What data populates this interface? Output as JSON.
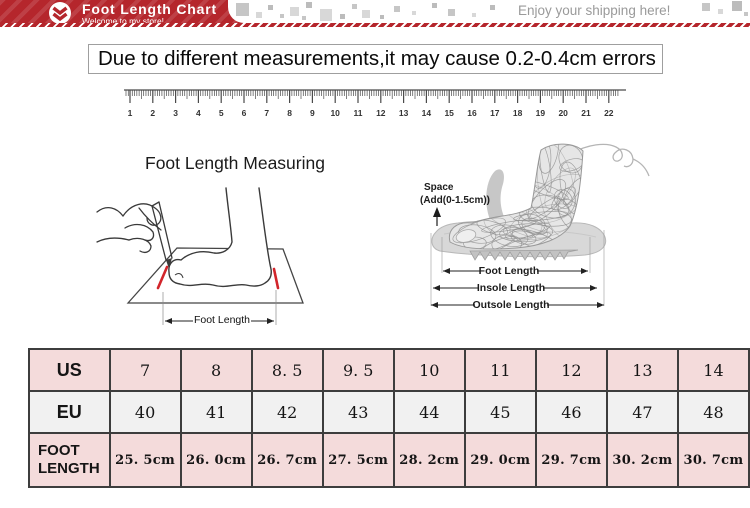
{
  "header": {
    "title": "Foot Length Chart",
    "subtitle": "Welcome to my store!",
    "tagline": "Enjoy your shipping here!"
  },
  "notice": {
    "text": "Due to different measurements,it may cause 0.2-0.4cm errors"
  },
  "ruler": {
    "numbers": [
      1,
      2,
      3,
      4,
      5,
      6,
      7,
      8,
      9,
      10,
      11,
      12,
      13,
      14,
      15,
      16,
      17,
      18,
      19,
      20,
      21,
      22
    ]
  },
  "measuring": {
    "title": "Foot Length Measuring",
    "foot_length_label": "Foot Length"
  },
  "shoe_diagram": {
    "space_label_line1": "Space",
    "space_label_line2": "(Add(0-1.5cm))",
    "arrows": [
      "Foot Length",
      "Insole Length",
      "Outsole Length"
    ]
  },
  "chart_data": {
    "type": "table",
    "title": "Foot Length Chart",
    "rows": [
      {
        "label": "US",
        "values": [
          "7",
          "8",
          "8. 5",
          "9. 5",
          "10",
          "11",
          "12",
          "13",
          "14"
        ]
      },
      {
        "label": "EU",
        "values": [
          "40",
          "41",
          "42",
          "43",
          "44",
          "45",
          "46",
          "47",
          "48"
        ]
      },
      {
        "label": "FOOT LENGTH",
        "values": [
          "25. 5cm",
          "26. 0cm",
          "26. 7cm",
          "27. 5cm",
          "28. 2cm",
          "29. 0cm",
          "29. 7cm",
          "30. 2cm",
          "30. 7cm"
        ]
      }
    ]
  },
  "colors": {
    "banner_red": "#b5262c",
    "row_pink": "#f4dbdb",
    "row_gray": "#f1f1f1",
    "table_border": "#3d3d3d",
    "red_mark": "#d2252b",
    "tagline_gray": "#9a9a9a"
  }
}
